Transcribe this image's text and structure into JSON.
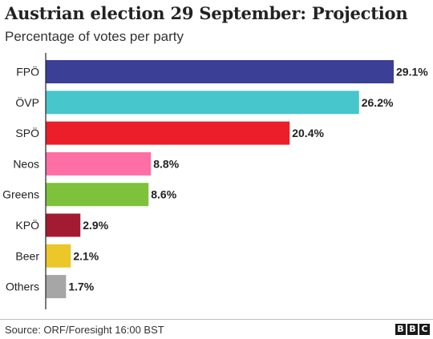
{
  "chart_data": {
    "type": "bar",
    "orientation": "horizontal",
    "title": "Austrian election 29 September: Projection",
    "subtitle": "Percentage of votes per party",
    "categories": [
      "FPÖ",
      "ÖVP",
      "SPÖ",
      "Neos",
      "Greens",
      "KPÖ",
      "Beer",
      "Others"
    ],
    "values": [
      29.1,
      26.2,
      20.4,
      8.8,
      8.6,
      2.9,
      2.1,
      1.7
    ],
    "value_labels": [
      "29.1%",
      "26.2%",
      "20.4%",
      "8.8%",
      "8.6%",
      "2.9%",
      "2.1%",
      "1.7%"
    ],
    "colors": [
      "#3b3f96",
      "#47c6cc",
      "#eb1e2a",
      "#ff6ea5",
      "#7ec13a",
      "#a31b32",
      "#ebc72a",
      "#a6a6a6"
    ],
    "xlim": [
      0,
      29.1
    ],
    "grid": false,
    "legend": false
  },
  "footer": {
    "source": "Source: ORF/Foresight 16:00 BST",
    "logo_letters": [
      "B",
      "B",
      "C"
    ]
  }
}
